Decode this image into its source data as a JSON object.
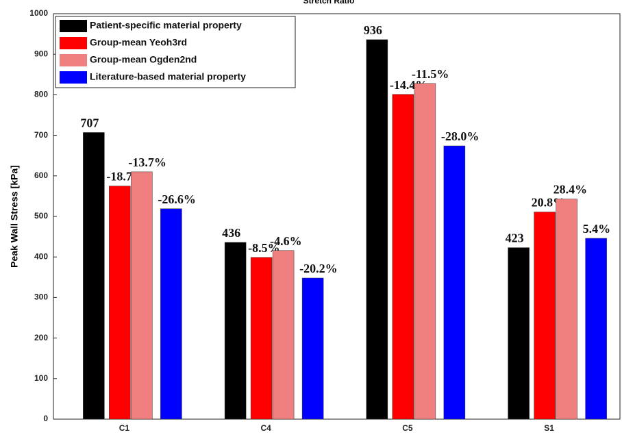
{
  "chart_data": {
    "type": "bar",
    "title": "Stretch Ratio",
    "y_label": "Peak Wall Stress [kPa]",
    "categories": [
      "C1",
      "C4",
      "C5",
      "S1"
    ],
    "series": [
      {
        "name": "Patient-specific material property",
        "color": "#000000",
        "values": [
          707,
          436,
          936,
          423
        ]
      },
      {
        "name": "Group-mean Yeoh3rd",
        "color": "#ff0000",
        "values": [
          575,
          399,
          801,
          511
        ],
        "labels": [
          "-18.7%",
          "-8.5%",
          "-14.4%",
          "20.8%"
        ]
      },
      {
        "name": "Group-mean Ogden2nd",
        "color": "#f08080",
        "values": [
          610,
          416,
          828,
          543
        ],
        "labels": [
          "-13.7%",
          "-4.6%",
          "-11.5%",
          "28.4%"
        ]
      },
      {
        "name": "Literature-based material property",
        "color": "#0000ff",
        "values": [
          519,
          348,
          674,
          446
        ],
        "labels": [
          "-26.6%",
          "-20.2%",
          "-28.0%",
          "5.4%"
        ]
      }
    ],
    "ylim": [
      0,
      1000
    ],
    "yticks": [
      0,
      100,
      200,
      300,
      400,
      500,
      600,
      700,
      800,
      900,
      1000
    ],
    "grid": false,
    "legend": "upper-left"
  }
}
